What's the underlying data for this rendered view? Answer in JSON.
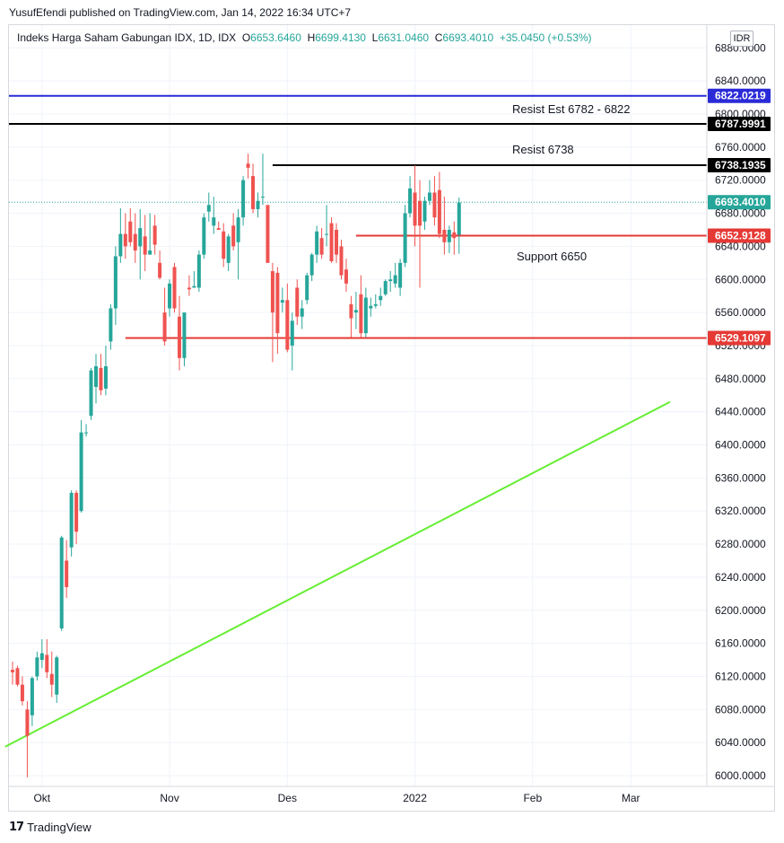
{
  "header": {
    "caption": "YusufEfendi published on TradingView.com, Jan 14, 2022 16:34 UTC+7"
  },
  "legend": {
    "symbol": "Indeks Harga Saham Gabungan IDX, 1D, IDX",
    "o_label": "O",
    "o": "6653.6460",
    "h_label": "H",
    "h": "6699.4130",
    "l_label": "L",
    "l": "6631.0460",
    "c_label": "C",
    "c": "6693.4010",
    "change": "+35.0450 (+0.53%)"
  },
  "currency": "IDR",
  "annotations": {
    "resist_est": "Resist Est 6782 - 6822",
    "resist": "Resist 6738",
    "support": "Support 6650"
  },
  "footer": {
    "brand": "TradingView",
    "logo_icon": "tradingview-logo-icon"
  },
  "colors": {
    "up": "#26a69a",
    "down": "#ef5350",
    "grid": "#f0f3fa",
    "blue_line": "#2a2ad8",
    "black_line": "#000000",
    "red_line": "#e53935",
    "trend_line": "#66ee33",
    "text": "#131722"
  },
  "chart_data": {
    "type": "candlestick",
    "y_range": [
      5990,
      6900
    ],
    "y_ticks": [
      "6000.0000",
      "6040.0000",
      "6080.0000",
      "6120.0000",
      "6160.0000",
      "6200.0000",
      "6240.0000",
      "6280.0000",
      "6320.0000",
      "6360.0000",
      "6400.0000",
      "6440.0000",
      "6480.0000",
      "6520.0000",
      "6560.0000",
      "6600.0000",
      "6640.0000",
      "6680.0000",
      "6720.0000",
      "6760.0000",
      "6800.0000",
      "6840.0000",
      "6880.0000"
    ],
    "x_labels": [
      {
        "label": "Okt",
        "day": 6
      },
      {
        "label": "Nov",
        "day": 32
      },
      {
        "label": "Des",
        "day": 56
      },
      {
        "label": "2022",
        "day": 82
      },
      {
        "label": "Feb",
        "day": 106
      },
      {
        "label": "Mar",
        "day": 126
      }
    ],
    "price_badges": [
      {
        "label": "6822.0219",
        "value": 6822.0219,
        "color": "#2a2ad8"
      },
      {
        "label": "6787.9991",
        "value": 6787.9991,
        "color": "#000000"
      },
      {
        "label": "6738.1935",
        "value": 6738.1935,
        "color": "#000000"
      },
      {
        "label": "6693.4010",
        "value": 6693.401,
        "color": "#26a69a"
      },
      {
        "label": "6652.9128",
        "value": 6652.9128,
        "color": "#e53935"
      },
      {
        "label": "6529.1097",
        "value": 6529.1097,
        "color": "#e53935"
      }
    ],
    "lines": [
      {
        "name": "resist-est",
        "value": 6822.0219,
        "from_day": -1,
        "color": "#2a2ad8"
      },
      {
        "name": "resist-high",
        "value": 6787.9991,
        "from_day": -1,
        "color": "#000000"
      },
      {
        "name": "resist",
        "value": 6738.1935,
        "from_day": 53,
        "color": "#000000"
      },
      {
        "name": "support",
        "value": 6652.9128,
        "from_day": 70,
        "color": "#e53935"
      },
      {
        "name": "support-low",
        "value": 6529.1097,
        "from_day": 23,
        "color": "#e53935"
      }
    ],
    "trend_line": {
      "from": {
        "day": -1.5,
        "value": 6035
      },
      "to": {
        "day": 134,
        "value": 6452
      }
    },
    "last_price": 6693.401,
    "candles": [
      {
        "d": 0,
        "o": 6128,
        "h": 6138,
        "l": 6110,
        "c": 6125
      },
      {
        "d": 1,
        "o": 6130,
        "h": 6133,
        "l": 6108,
        "c": 6110
      },
      {
        "d": 2,
        "o": 6110,
        "h": 6120,
        "l": 6085,
        "c": 6090
      },
      {
        "d": 3,
        "o": 6080,
        "h": 6090,
        "l": 5998,
        "c": 6048
      },
      {
        "d": 4,
        "o": 6073,
        "h": 6120,
        "l": 6060,
        "c": 6118
      },
      {
        "d": 5,
        "o": 6120,
        "h": 6150,
        "l": 6115,
        "c": 6143
      },
      {
        "d": 6,
        "o": 6140,
        "h": 6165,
        "l": 6130,
        "c": 6148
      },
      {
        "d": 7,
        "o": 6146,
        "h": 6165,
        "l": 6118,
        "c": 6125
      },
      {
        "d": 8,
        "o": 6123,
        "h": 6150,
        "l": 6095,
        "c": 6110
      },
      {
        "d": 9,
        "o": 6098,
        "h": 6145,
        "l": 6088,
        "c": 6143
      },
      {
        "d": 10,
        "o": 6178,
        "h": 6290,
        "l": 6175,
        "c": 6288
      },
      {
        "d": 11,
        "o": 6260,
        "h": 6285,
        "l": 6215,
        "c": 6228
      },
      {
        "d": 12,
        "o": 6276,
        "h": 6345,
        "l": 6265,
        "c": 6342
      },
      {
        "d": 13,
        "o": 6342,
        "h": 6345,
        "l": 6280,
        "c": 6295
      },
      {
        "d": 14,
        "o": 6320,
        "h": 6430,
        "l": 6318,
        "c": 6415
      },
      {
        "d": 15,
        "o": 6415,
        "h": 6425,
        "l": 6410,
        "c": 6415
      },
      {
        "d": 16,
        "o": 6435,
        "h": 6493,
        "l": 6430,
        "c": 6490
      },
      {
        "d": 17,
        "o": 6470,
        "h": 6510,
        "l": 6450,
        "c": 6495
      },
      {
        "d": 18,
        "o": 6493,
        "h": 6510,
        "l": 6460,
        "c": 6466
      },
      {
        "d": 19,
        "o": 6468,
        "h": 6520,
        "l": 6460,
        "c": 6495
      },
      {
        "d": 20,
        "o": 6525,
        "h": 6570,
        "l": 6515,
        "c": 6565
      },
      {
        "d": 21,
        "o": 6565,
        "h": 6640,
        "l": 6545,
        "c": 6628
      },
      {
        "d": 22,
        "o": 6628,
        "h": 6686,
        "l": 6620,
        "c": 6655
      },
      {
        "d": 23,
        "o": 6655,
        "h": 6680,
        "l": 6625,
        "c": 6640
      },
      {
        "d": 24,
        "o": 6670,
        "h": 6686,
        "l": 6640,
        "c": 6645
      },
      {
        "d": 25,
        "o": 6655,
        "h": 6680,
        "l": 6620,
        "c": 6635
      },
      {
        "d": 26,
        "o": 6640,
        "h": 6685,
        "l": 6600,
        "c": 6662
      },
      {
        "d": 27,
        "o": 6652,
        "h": 6678,
        "l": 6610,
        "c": 6630
      },
      {
        "d": 28,
        "o": 6630,
        "h": 6680,
        "l": 6630,
        "c": 6635
      },
      {
        "d": 29,
        "o": 6665,
        "h": 6678,
        "l": 6630,
        "c": 6642
      },
      {
        "d": 30,
        "o": 6620,
        "h": 6635,
        "l": 6600,
        "c": 6602
      },
      {
        "d": 31,
        "o": 6560,
        "h": 6590,
        "l": 6520,
        "c": 6525
      },
      {
        "d": 32,
        "o": 6565,
        "h": 6600,
        "l": 6555,
        "c": 6595
      },
      {
        "d": 33,
        "o": 6615,
        "h": 6620,
        "l": 6560,
        "c": 6565
      },
      {
        "d": 34,
        "o": 6555,
        "h": 6580,
        "l": 6490,
        "c": 6505
      },
      {
        "d": 35,
        "o": 6505,
        "h": 6560,
        "l": 6495,
        "c": 6560
      },
      {
        "d": 36,
        "o": 6590,
        "h": 6605,
        "l": 6580,
        "c": 6588
      },
      {
        "d": 37,
        "o": 6590,
        "h": 6610,
        "l": 6590,
        "c": 6592
      },
      {
        "d": 38,
        "o": 6590,
        "h": 6635,
        "l": 6585,
        "c": 6630
      },
      {
        "d": 39,
        "o": 6630,
        "h": 6680,
        "l": 6625,
        "c": 6675
      },
      {
        "d": 40,
        "o": 6682,
        "h": 6705,
        "l": 6670,
        "c": 6690
      },
      {
        "d": 41,
        "o": 6665,
        "h": 6700,
        "l": 6655,
        "c": 6675
      },
      {
        "d": 42,
        "o": 6662,
        "h": 6670,
        "l": 6660,
        "c": 6660
      },
      {
        "d": 43,
        "o": 6658,
        "h": 6668,
        "l": 6615,
        "c": 6625
      },
      {
        "d": 44,
        "o": 6620,
        "h": 6655,
        "l": 6610,
        "c": 6652
      },
      {
        "d": 45,
        "o": 6665,
        "h": 6680,
        "l": 6635,
        "c": 6640
      },
      {
        "d": 46,
        "o": 6645,
        "h": 6685,
        "l": 6600,
        "c": 6675
      },
      {
        "d": 47,
        "o": 6675,
        "h": 6725,
        "l": 6665,
        "c": 6720
      },
      {
        "d": 48,
        "o": 6740,
        "h": 6752,
        "l": 6722,
        "c": 6735
      },
      {
        "d": 49,
        "o": 6725,
        "h": 6740,
        "l": 6680,
        "c": 6685
      },
      {
        "d": 50,
        "o": 6685,
        "h": 6705,
        "l": 6675,
        "c": 6695
      },
      {
        "d": 51,
        "o": 6700,
        "h": 6752,
        "l": 6690,
        "c": 6700
      },
      {
        "d": 52,
        "o": 6690,
        "h": 6690,
        "l": 6620,
        "c": 6620
      },
      {
        "d": 53,
        "o": 6610,
        "h": 6620,
        "l": 6500,
        "c": 6560
      },
      {
        "d": 54,
        "o": 6608,
        "h": 6615,
        "l": 6510,
        "c": 6535
      },
      {
        "d": 55,
        "o": 6572,
        "h": 6590,
        "l": 6560,
        "c": 6575
      },
      {
        "d": 56,
        "o": 6575,
        "h": 6595,
        "l": 6512,
        "c": 6515
      },
      {
        "d": 57,
        "o": 6520,
        "h": 6560,
        "l": 6490,
        "c": 6550
      },
      {
        "d": 58,
        "o": 6590,
        "h": 6600,
        "l": 6545,
        "c": 6555
      },
      {
        "d": 59,
        "o": 6555,
        "h": 6575,
        "l": 6540,
        "c": 6565
      },
      {
        "d": 60,
        "o": 6575,
        "h": 6608,
        "l": 6570,
        "c": 6605
      },
      {
        "d": 61,
        "o": 6605,
        "h": 6632,
        "l": 6598,
        "c": 6630
      },
      {
        "d": 62,
        "o": 6630,
        "h": 6665,
        "l": 6620,
        "c": 6658
      },
      {
        "d": 63,
        "o": 6650,
        "h": 6662,
        "l": 6625,
        "c": 6630
      },
      {
        "d": 64,
        "o": 6655,
        "h": 6690,
        "l": 6640,
        "c": 6655
      },
      {
        "d": 65,
        "o": 6668,
        "h": 6675,
        "l": 6620,
        "c": 6622
      },
      {
        "d": 66,
        "o": 6660,
        "h": 6668,
        "l": 6620,
        "c": 6630
      },
      {
        "d": 67,
        "o": 6640,
        "h": 6648,
        "l": 6600,
        "c": 6605
      },
      {
        "d": 68,
        "o": 6612,
        "h": 6625,
        "l": 6585,
        "c": 6595
      },
      {
        "d": 69,
        "o": 6570,
        "h": 6580,
        "l": 6530,
        "c": 6553
      },
      {
        "d": 70,
        "o": 6560,
        "h": 6585,
        "l": 6540,
        "c": 6563
      },
      {
        "d": 71,
        "o": 6582,
        "h": 6605,
        "l": 6530,
        "c": 6535
      },
      {
        "d": 72,
        "o": 6535,
        "h": 6590,
        "l": 6530,
        "c": 6578
      },
      {
        "d": 73,
        "o": 6565,
        "h": 6578,
        "l": 6555,
        "c": 6568
      },
      {
        "d": 74,
        "o": 6568,
        "h": 6582,
        "l": 6565,
        "c": 6570
      },
      {
        "d": 75,
        "o": 6575,
        "h": 6590,
        "l": 6568,
        "c": 6580
      },
      {
        "d": 76,
        "o": 6582,
        "h": 6600,
        "l": 6580,
        "c": 6598
      },
      {
        "d": 77,
        "o": 6598,
        "h": 6610,
        "l": 6585,
        "c": 6600
      },
      {
        "d": 78,
        "o": 6595,
        "h": 6620,
        "l": 6590,
        "c": 6605
      },
      {
        "d": 79,
        "o": 6590,
        "h": 6625,
        "l": 6580,
        "c": 6620
      },
      {
        "d": 80,
        "o": 6620,
        "h": 6690,
        "l": 6615,
        "c": 6680
      },
      {
        "d": 81,
        "o": 6680,
        "h": 6725,
        "l": 6675,
        "c": 6710
      },
      {
        "d": 82,
        "o": 6705,
        "h": 6738,
        "l": 6640,
        "c": 6665
      },
      {
        "d": 83,
        "o": 6695,
        "h": 6720,
        "l": 6590,
        "c": 6665
      },
      {
        "d": 84,
        "o": 6670,
        "h": 6700,
        "l": 6660,
        "c": 6695
      },
      {
        "d": 85,
        "o": 6695,
        "h": 6720,
        "l": 6690,
        "c": 6705
      },
      {
        "d": 86,
        "o": 6705,
        "h": 6725,
        "l": 6665,
        "c": 6675
      },
      {
        "d": 87,
        "o": 6708,
        "h": 6730,
        "l": 6650,
        "c": 6655
      },
      {
        "d": 88,
        "o": 6660,
        "h": 6700,
        "l": 6630,
        "c": 6645
      },
      {
        "d": 89,
        "o": 6645,
        "h": 6665,
        "l": 6632,
        "c": 6660
      },
      {
        "d": 90,
        "o": 6657,
        "h": 6670,
        "l": 6630,
        "c": 6650
      },
      {
        "d": 91,
        "o": 6654,
        "h": 6699,
        "l": 6631,
        "c": 6693
      }
    ]
  }
}
